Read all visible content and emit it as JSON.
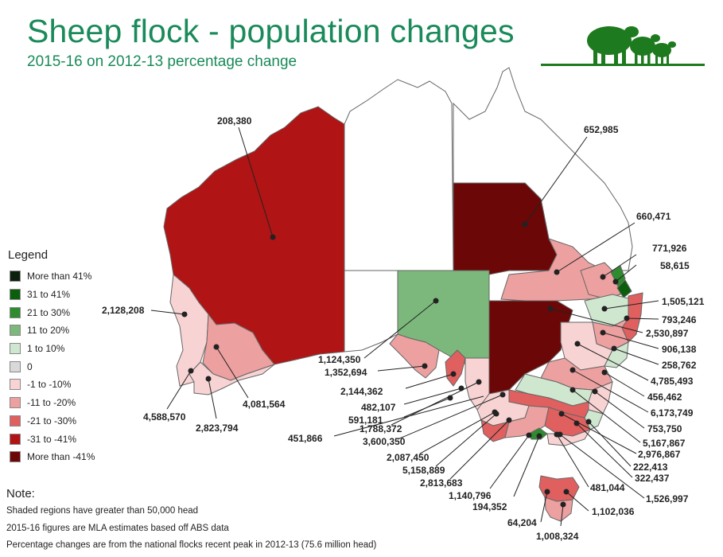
{
  "header": {
    "title": "Sheep flock - population changes",
    "subtitle": "2015-16 on 2012-13 percentage change"
  },
  "legend": {
    "title": "Legend",
    "items": [
      {
        "label": "More than 41%",
        "color": "#0d1f0d"
      },
      {
        "label": "31 to 41%",
        "color": "#0b5e0b"
      },
      {
        "label": "21 to 30%",
        "color": "#2e8b2e"
      },
      {
        "label": "11 to 20%",
        "color": "#7cb87c"
      },
      {
        "label": "1 to 10%",
        "color": "#cfe6cf"
      },
      {
        "label": "0",
        "color": "#d9d9d9"
      },
      {
        "label": "-1 to -10%",
        "color": "#f8d3d3"
      },
      {
        "label": "-11 to -20%",
        "color": "#eca0a0"
      },
      {
        "label": "-21 to -30%",
        "color": "#e06060"
      },
      {
        "label": "-31 to -41%",
        "color": "#b01414"
      },
      {
        "label": "More than -41%",
        "color": "#6b0707"
      }
    ]
  },
  "note": {
    "title": "Note:",
    "lines": [
      "Shaded regions have greater than 50,000 head",
      "2015-16 figures are MLA estimates based off ABS data",
      "Percentage changes are from the national flocks recent peak in 2012-13 (75.6 million head)"
    ]
  },
  "map_labels": [
    "208,380",
    "652,985",
    "660,471",
    "771,926",
    "58,615",
    "1,505,121",
    "793,246",
    "2,530,897",
    "906,138",
    "258,762",
    "4,785,493",
    "456,462",
    "6,173,749",
    "753,750",
    "5,167,867",
    "2,976,867",
    "222,413",
    "322,437",
    "1,526,997",
    "481,044",
    "1,102,036",
    "1,008,324",
    "64,204",
    "194,352",
    "1,140,796",
    "2,813,683",
    "5,158,889",
    "2,087,450",
    "3,600,350",
    "1,788,372",
    "451,866",
    "591,181",
    "482,107",
    "2,144,362",
    "1,352,694",
    "1,124,350",
    "2,128,208",
    "4,081,564",
    "4,588,570",
    "2,823,794"
  ]
}
